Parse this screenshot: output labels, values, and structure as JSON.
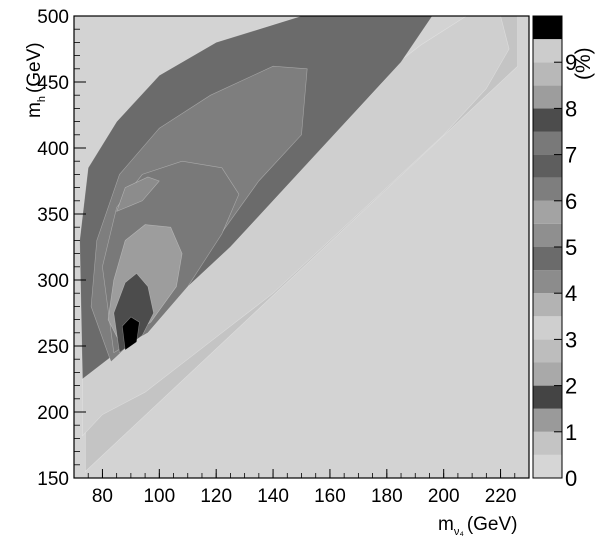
{
  "chart_data": {
    "type": "heatmap",
    "title": "",
    "xlabel": {
      "main": "m",
      "sub": "ν₄",
      "unit": "(GeV)"
    },
    "ylabel": {
      "main": "m",
      "sub": "h",
      "unit": "(GeV)"
    },
    "zlabel": "(%)",
    "xlim": [
      70,
      230
    ],
    "ylim": [
      150,
      500
    ],
    "x_ticks": [
      "80",
      "100",
      "120",
      "140",
      "160",
      "180",
      "200",
      "220"
    ],
    "y_ticks": [
      "150",
      "200",
      "250",
      "300",
      "350",
      "400",
      "450",
      "500"
    ],
    "z_ticks": [
      "0",
      "1",
      "2",
      "3",
      "4",
      "5",
      "6",
      "7",
      "8",
      "9"
    ],
    "z_range": [
      0,
      10
    ],
    "z_levels": 20,
    "grid": false,
    "background_color": "#d3d3d3",
    "color_scale": [
      "#d6d6d6",
      "#c4c4c4",
      "#9a9a9a",
      "#444444",
      "#a9a9a9",
      "#bdbdbd",
      "#cfcfcf",
      "#b3b3b3",
      "#8c8c8c",
      "#6b6b6b",
      "#8f8f8f",
      "#a3a3a3",
      "#7e7e7e",
      "#5e5e5e",
      "#797979",
      "#4c4c4c",
      "#9d9d9d",
      "#b8b8b8",
      "#cccccc",
      "#000000"
    ],
    "regions": [
      {
        "z": 0.5,
        "polygon": [
          [
            74,
            155
          ],
          [
            226,
            462
          ],
          [
            226,
            500
          ],
          [
            212,
            500
          ],
          [
            190,
            470
          ],
          [
            170,
            440
          ],
          [
            150,
            410
          ],
          [
            130,
            375
          ],
          [
            108,
            330
          ],
          [
            88,
            283
          ],
          [
            74,
            245
          ]
        ]
      },
      {
        "z": 3.1,
        "polygon": [
          [
            73,
            182
          ],
          [
            80,
            198
          ],
          [
            95,
            215
          ],
          [
            110,
            240
          ],
          [
            125,
            265
          ],
          [
            140,
            290
          ],
          [
            155,
            320
          ],
          [
            170,
            350
          ],
          [
            185,
            380
          ],
          [
            200,
            410
          ],
          [
            215,
            445
          ],
          [
            223,
            475
          ],
          [
            220,
            500
          ],
          [
            208,
            500
          ],
          [
            192,
            478
          ],
          [
            175,
            450
          ],
          [
            157,
            420
          ],
          [
            138,
            388
          ],
          [
            118,
            350
          ],
          [
            98,
            305
          ],
          [
            82,
            265
          ],
          [
            73,
            240
          ]
        ]
      },
      {
        "z": 4.5,
        "polygon": [
          [
            73,
            225
          ],
          [
            85,
            245
          ],
          [
            98,
            270
          ],
          [
            110,
            295
          ],
          [
            125,
            325
          ],
          [
            140,
            360
          ],
          [
            155,
            395
          ],
          [
            170,
            430
          ],
          [
            185,
            465
          ],
          [
            196,
            500
          ],
          [
            150,
            500
          ],
          [
            120,
            480
          ],
          [
            100,
            455
          ],
          [
            85,
            420
          ],
          [
            75,
            385
          ],
          [
            72,
            330
          ]
        ]
      },
      {
        "z": 6.3,
        "polygon": [
          [
            83,
            238
          ],
          [
            95,
            262
          ],
          [
            108,
            290
          ],
          [
            120,
            330
          ],
          [
            135,
            375
          ],
          [
            150,
            410
          ],
          [
            152,
            460
          ],
          [
            140,
            462
          ],
          [
            118,
            440
          ],
          [
            100,
            415
          ],
          [
            86,
            380
          ],
          [
            78,
            330
          ],
          [
            76,
            280
          ]
        ]
      },
      {
        "z": 7.0,
        "polygon": [
          [
            84,
            245
          ],
          [
            96,
            260
          ],
          [
            110,
            295
          ],
          [
            122,
            335
          ],
          [
            128,
            365
          ],
          [
            122,
            385
          ],
          [
            108,
            390
          ],
          [
            94,
            380
          ],
          [
            85,
            355
          ],
          [
            80,
            310
          ]
        ]
      },
      {
        "z": 8.2,
        "polygon": [
          [
            86,
            253
          ],
          [
            97,
            268
          ],
          [
            106,
            295
          ],
          [
            108,
            320
          ],
          [
            104,
            340
          ],
          [
            95,
            342
          ],
          [
            88,
            330
          ],
          [
            84,
            300
          ],
          [
            82,
            270
          ]
        ]
      },
      {
        "z": 7.6,
        "polygon": [
          [
            86,
            245
          ],
          [
            94,
            258
          ],
          [
            98,
            275
          ],
          [
            96,
            295
          ],
          [
            92,
            305
          ],
          [
            88,
            298
          ],
          [
            84,
            275
          ]
        ]
      },
      {
        "z": 9.8,
        "polygon": [
          [
            88,
            247
          ],
          [
            92,
            253
          ],
          [
            93,
            268
          ],
          [
            90,
            272
          ],
          [
            87,
            265
          ]
        ]
      },
      {
        "z": 4.1,
        "polygon": [
          [
            85,
            352
          ],
          [
            94,
            360
          ],
          [
            100,
            375
          ],
          [
            96,
            378
          ],
          [
            88,
            370
          ]
        ]
      }
    ]
  }
}
